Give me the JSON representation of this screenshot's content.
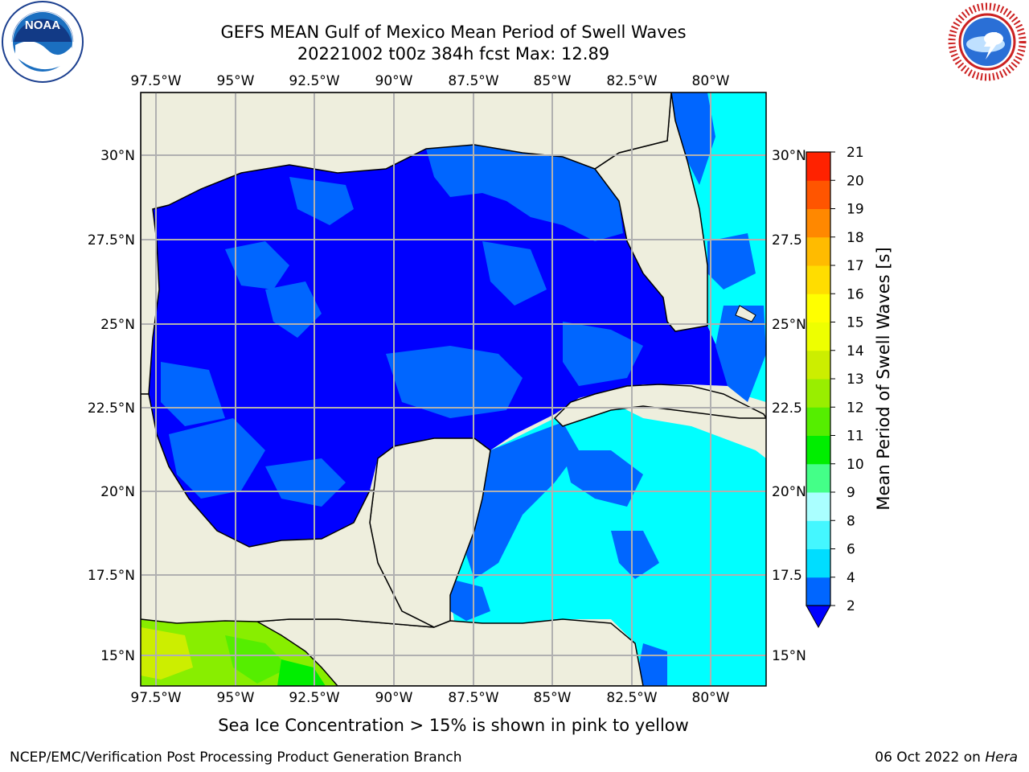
{
  "title": {
    "line1": "GEFS MEAN Gulf of Mexico Mean Period of Swell Waves",
    "line2": "20221002 t00z 384h fcst   Max: 12.89"
  },
  "map": {
    "lon_labels": [
      "97.5°W",
      "95°W",
      "92.5°W",
      "90°W",
      "87.5°W",
      "85°W",
      "82.5°W",
      "80°W"
    ],
    "lat_labels_left": [
      "30°N",
      "27.5°N",
      "25°N",
      "22.5°N",
      "20°N",
      "17.5°N",
      "15°N"
    ],
    "lat_labels_right": [
      "30°N",
      "27.5",
      "25°N",
      "22.5",
      "20°N",
      "17.5",
      "15°N"
    ],
    "land_color": "#eeeedd",
    "grid_color": "#b0b0b0"
  },
  "colorbar": {
    "label": "Mean Period of Swell Waves [s]",
    "ticks": [
      "2",
      "4",
      "6",
      "8",
      "9",
      "10",
      "11",
      "12",
      "13",
      "14",
      "15",
      "16",
      "17",
      "18",
      "19",
      "20",
      "21"
    ],
    "colors": [
      "#0066ff",
      "#00ddff",
      "#44f7ff",
      "#aaffff",
      "#44ff88",
      "#00ee00",
      "#55ee00",
      "#99ee00",
      "#ccee00",
      "#eeff00",
      "#ffff00",
      "#ffdd00",
      "#ffbb00",
      "#ff8800",
      "#ff5500",
      "#ff2200"
    ],
    "under_color": "#0000ff"
  },
  "chart_data": {
    "type": "heatmap",
    "title": "GEFS MEAN Gulf of Mexico Mean Period of Swell Waves",
    "subtitle": "20221002 t00z 384h fcst   Max: 12.89",
    "x_range": [
      -98,
      -77.5
    ],
    "y_range": [
      14,
      31.5
    ],
    "colorbar_label": "Mean Period of Swell Waves [s]",
    "max": 12.89,
    "regions": [
      {
        "region": "Central and western Gulf of Mexico",
        "period_range_s": "< 2"
      },
      {
        "region": "Eastern Gulf of Mexico patches",
        "period_range_s": "2-4"
      },
      {
        "region": "Western Caribbean Sea",
        "period_range_s": "4-6"
      },
      {
        "region": "Atlantic east of Florida",
        "period_range_s": "4-6"
      },
      {
        "region": "Eastern Pacific south of Mexico",
        "period_range_s": "10-13"
      }
    ]
  },
  "note": "Sea Ice Concentration > 15% is shown in pink to yellow",
  "footer": {
    "left": "NCEP/EMC/Verification Post Processing Product Generation Branch",
    "right_date": "06 Oct 2022 on ",
    "right_host": "Hera"
  }
}
